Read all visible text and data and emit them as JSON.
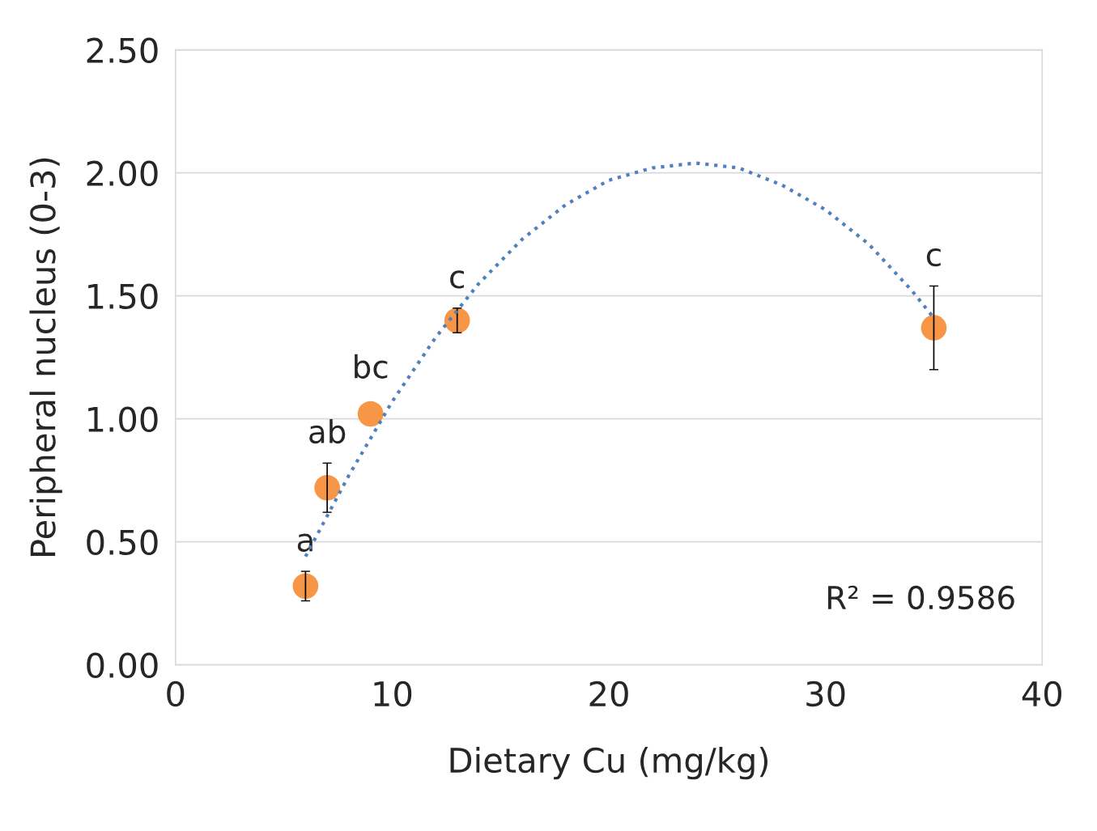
{
  "chart_data": {
    "type": "scatter",
    "xlabel": "Dietary Cu (mg/kg)",
    "ylabel": "Peripheral nucleus (0-3)",
    "xlim": [
      0,
      40
    ],
    "xticks": [
      0,
      10,
      20,
      30,
      40
    ],
    "ylim": [
      0,
      2.5
    ],
    "yticks": [
      {
        "value": 0,
        "label": "0.00"
      },
      {
        "value": 0.5,
        "label": "0.50"
      },
      {
        "value": 1,
        "label": "1.00"
      },
      {
        "value": 1.5,
        "label": "1.50"
      },
      {
        "value": 2,
        "label": "2.00"
      },
      {
        "value": 2.5,
        "label": "2.50"
      }
    ],
    "grid": "y",
    "legend": false,
    "series": [
      {
        "type": "scatter",
        "color": "#f79646",
        "marker": "circle",
        "x": [
          6,
          7,
          9,
          13,
          35
        ],
        "values": [
          0.32,
          0.72,
          1.02,
          1.4,
          1.37
        ],
        "errors": [
          0.06,
          0.1,
          null,
          0.05,
          0.17
        ]
      },
      {
        "type": "line",
        "color": "#4f81bd",
        "line_style": "dotted",
        "marker": "none",
        "x": [
          6,
          8,
          10,
          12,
          14,
          16,
          18,
          20,
          22,
          24,
          26,
          28,
          30,
          32,
          34,
          35
        ],
        "values": [
          0.44,
          0.77,
          1.07,
          1.33,
          1.55,
          1.73,
          1.87,
          1.97,
          2.02,
          2.04,
          2.02,
          1.95,
          1.85,
          1.71,
          1.52,
          1.41
        ]
      }
    ],
    "annotations": [
      {
        "text": "a",
        "x": 6,
        "y": 0.32
      },
      {
        "text": "ab",
        "x": 7,
        "y": 0.72
      },
      {
        "text": "bc",
        "x": 9,
        "y": 1.02
      },
      {
        "text": "c",
        "x": 13,
        "y": 1.4
      },
      {
        "text": "c",
        "x": 35,
        "y": 1.37
      },
      "R² = 0.9586"
    ]
  }
}
